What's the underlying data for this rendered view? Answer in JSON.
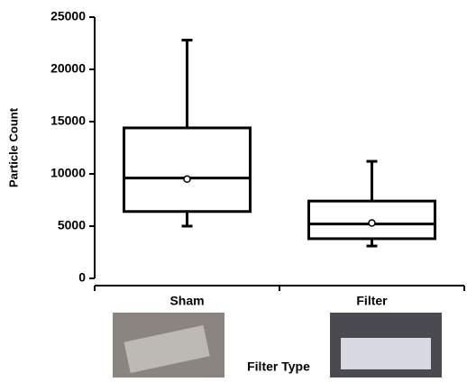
{
  "chart_data": {
    "type": "box",
    "y_label": "Particle Count",
    "x_label": "Filter Type",
    "categories": [
      "Sham",
      "Filter"
    ],
    "boxes": [
      {
        "min": 5000,
        "q1": 6400,
        "median": 9600,
        "q3": 14400,
        "max": 22800,
        "mean": 9500
      },
      {
        "min": 3100,
        "q1": 3800,
        "median": 5200,
        "q3": 7400,
        "max": 11200,
        "mean": 5300
      }
    ],
    "ylim": [
      0,
      25000
    ],
    "yticks": [
      0,
      5000,
      10000,
      15000,
      20000,
      25000
    ]
  }
}
